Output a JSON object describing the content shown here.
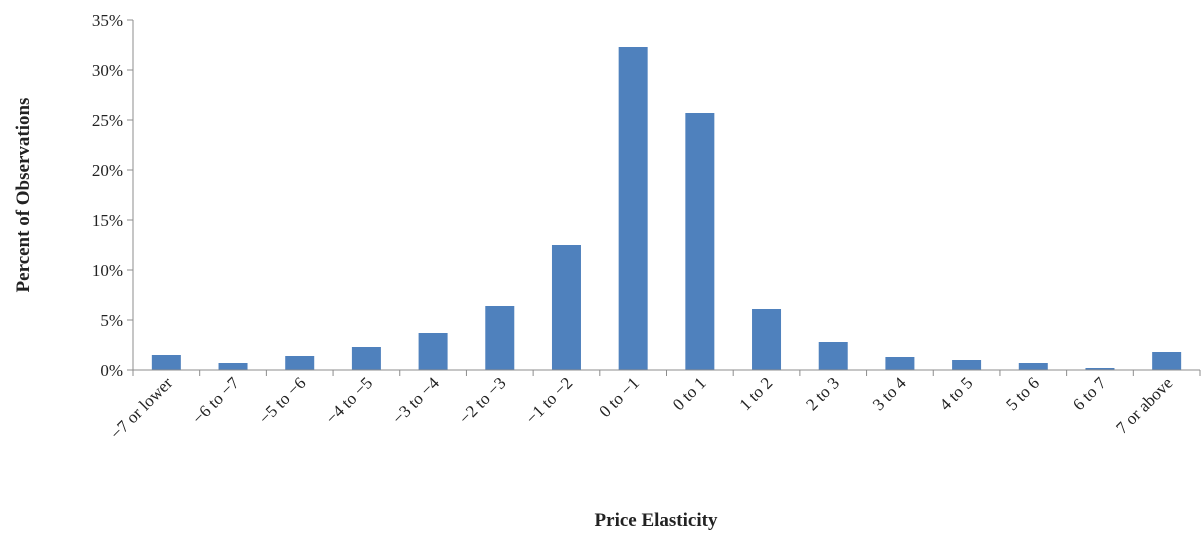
{
  "chart_data": {
    "type": "bar",
    "title": "",
    "xlabel": "Price Elasticity",
    "ylabel": "Percent of Observations",
    "categories": [
      "−7 or lower",
      "−6 to −7",
      "−5 to −6",
      "−4 to −5",
      "−3 to −4",
      "−2 to −3",
      "−1 to −2",
      "0 to −1",
      "0 to 1",
      "1 to 2",
      "2 to 3",
      "3 to 4",
      "4 to 5",
      "5 to 6",
      "6 to 7",
      "7 or above"
    ],
    "values": [
      1.5,
      0.7,
      1.4,
      2.3,
      3.7,
      6.4,
      12.5,
      32.3,
      25.7,
      6.1,
      2.8,
      1.3,
      1.0,
      0.7,
      0.2,
      1.8
    ],
    "ylim": [
      0,
      35
    ],
    "yticks": [
      0,
      5,
      10,
      15,
      20,
      25,
      30,
      35
    ],
    "ytick_labels": [
      "0%",
      "5%",
      "10%",
      "15%",
      "20%",
      "25%",
      "30%",
      "35%"
    ],
    "grid": false,
    "legend": "none",
    "bar_color": "#4F81BD",
    "axis_color": "#8C8C8C"
  }
}
